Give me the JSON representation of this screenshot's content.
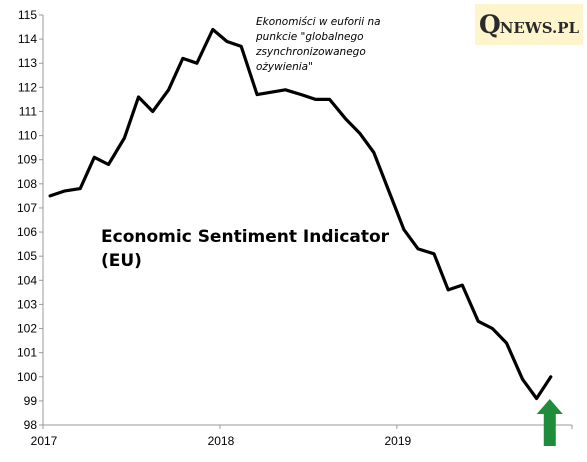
{
  "logo": {
    "q": "Q",
    "rest": "NEWS.PL"
  },
  "annotation": {
    "lines": [
      "Ekonomiści  w euforii na",
      "punkcie \"globalnego",
      "zsynchronizowanego",
      "ożywienia\""
    ]
  },
  "colors": {
    "line": "#000000",
    "arrow": "#1e8c3a",
    "logo_bg": "#fff5cc"
  },
  "chart_data": {
    "type": "line",
    "title_lines": [
      "Economic Sentiment Indicator",
      "(EU)"
    ],
    "xlabel": "",
    "ylabel": "",
    "ylim": [
      98,
      115
    ],
    "yticks": [
      98,
      99,
      100,
      101,
      102,
      103,
      104,
      105,
      106,
      107,
      108,
      109,
      110,
      111,
      112,
      113,
      114,
      115
    ],
    "xlim": [
      2017.0,
      2019.99
    ],
    "xticks": [
      2017,
      2018,
      2019
    ],
    "x_tick_labels": [
      "2017",
      "2018",
      "2019"
    ],
    "grid": false,
    "series": [
      {
        "x": [
          2017.04,
          2017.12,
          2017.21,
          2017.29,
          2017.37,
          2017.46,
          2017.54,
          2017.62,
          2017.71,
          2017.79,
          2017.87,
          2017.96,
          2018.04,
          2018.12,
          2018.21,
          2018.29,
          2018.37,
          2018.46,
          2018.54,
          2018.62,
          2018.71,
          2018.79,
          2018.87,
          2018.96,
          2019.04,
          2019.12,
          2019.21,
          2019.29,
          2019.37,
          2019.46,
          2019.54,
          2019.62,
          2019.71,
          2019.79,
          2019.87
        ],
        "values": [
          107.5,
          107.7,
          107.8,
          109.1,
          108.8,
          109.9,
          111.6,
          111.0,
          111.9,
          113.2,
          113.0,
          114.4,
          113.9,
          113.7,
          111.7,
          111.8,
          111.9,
          111.7,
          111.5,
          111.5,
          110.7,
          110.1,
          109.3,
          107.6,
          106.1,
          105.3,
          105.1,
          103.6,
          103.8,
          102.3,
          102.0,
          101.4,
          99.9,
          99.1,
          100.0
        ]
      }
    ],
    "annotation_arrow": {
      "direction": "up",
      "at_x": 2019.87
    }
  }
}
